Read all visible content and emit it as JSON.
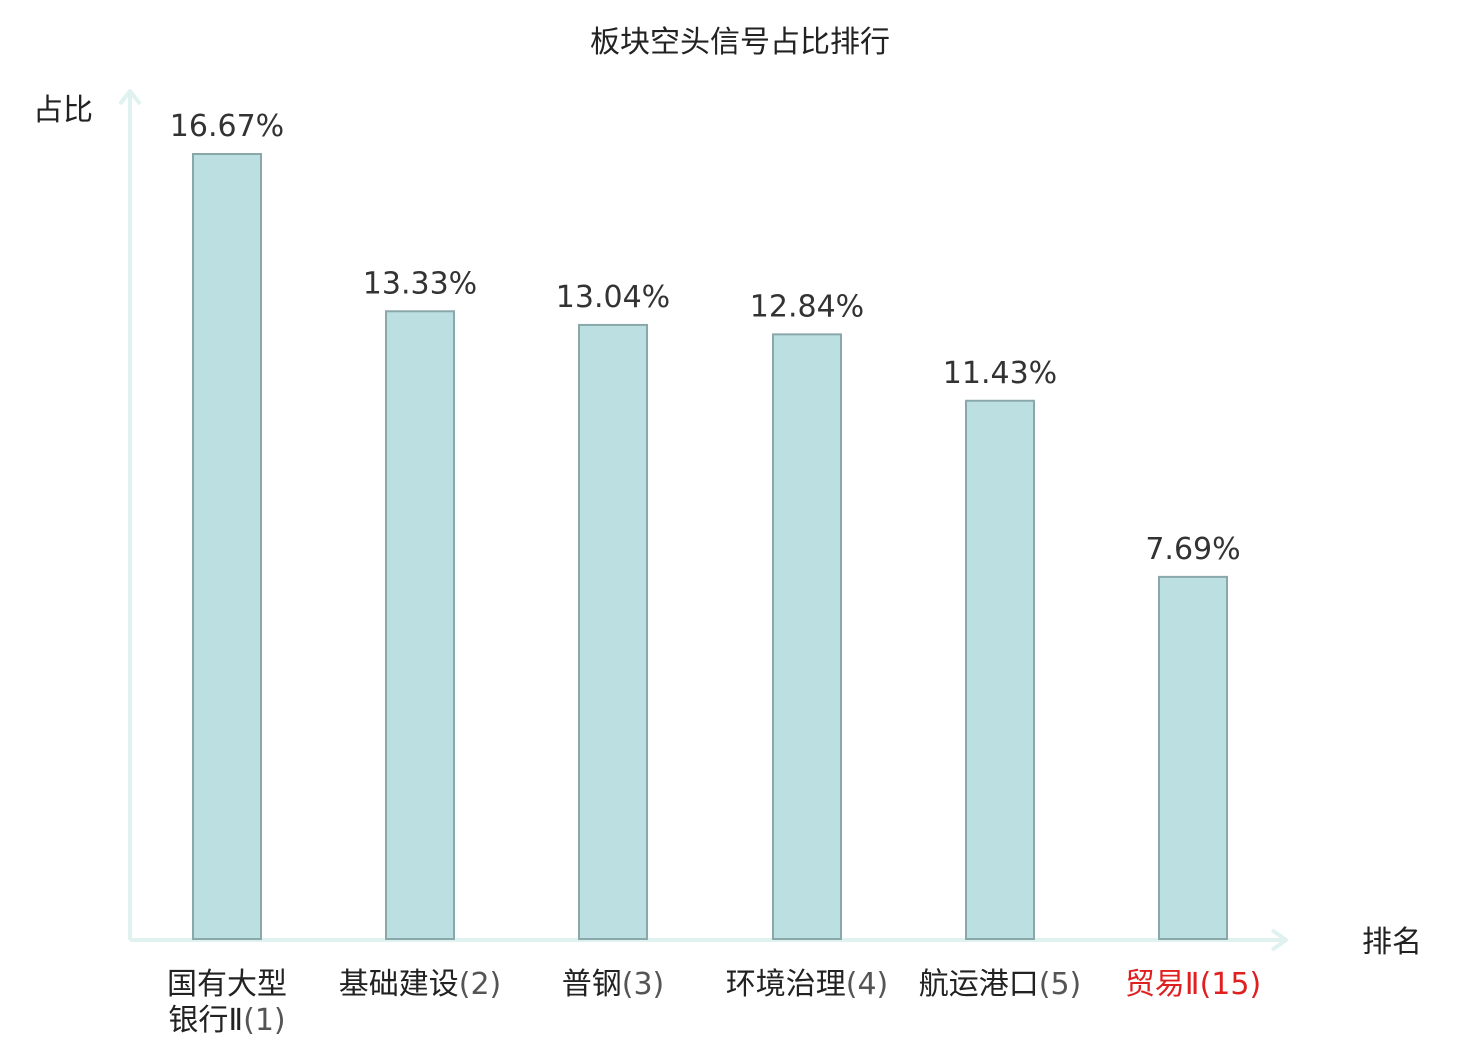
{
  "chart_data": {
    "type": "bar",
    "title": "板块空头信号占比排行",
    "ylabel": "占比",
    "xlabel": "排名",
    "categories": [
      {
        "name": "国有大型\n银行Ⅱ",
        "rank": "(1)"
      },
      {
        "name": "基础建设",
        "rank": "(2)"
      },
      {
        "name": "普钢",
        "rank": "(3)"
      },
      {
        "name": "环境治理",
        "rank": "(4)"
      },
      {
        "name": "航运港口",
        "rank": "(5)"
      },
      {
        "name": "贸易Ⅱ",
        "rank": "(15)"
      }
    ],
    "values": [
      16.67,
      13.33,
      13.04,
      12.84,
      11.43,
      7.69
    ],
    "value_labels": [
      "16.67%",
      "13.33%",
      "13.04%",
      "12.84%",
      "11.43%",
      "7.69%"
    ],
    "ylim": [
      0,
      16.67
    ],
    "grid": false,
    "highlighted_category_index": 5,
    "colors": {
      "bar_fill": "#bce0e2",
      "bar_stroke": "#8aa8aa",
      "axis": "#e0f2ef",
      "text": "#222222",
      "value_text": "#333333",
      "rank_text": "#555555",
      "highlight": "#e02020"
    }
  }
}
